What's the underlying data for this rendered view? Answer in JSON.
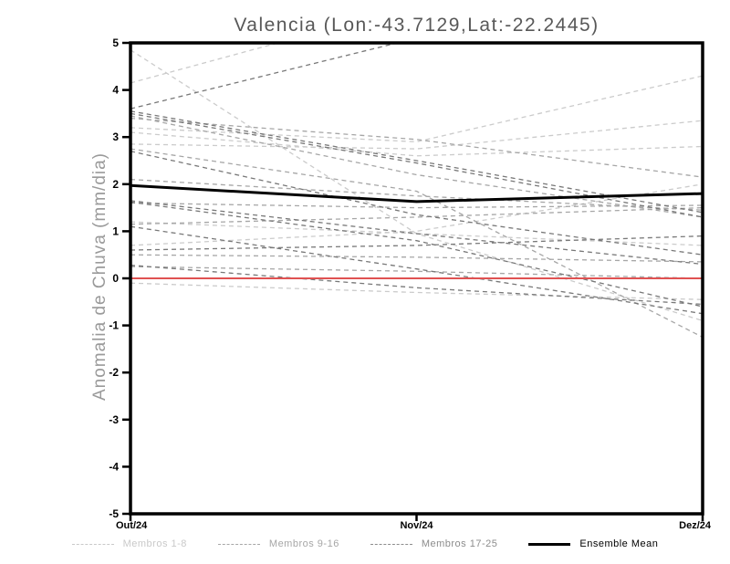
{
  "title": "Valencia (Lon:-43.7129,Lat:-22.2445)",
  "chart_data": {
    "type": "line",
    "title": "Valencia (Lon:-43.7129,Lat:-22.2445)",
    "xlabel": "",
    "ylabel": "Anomalia de Chuva (mm/dia)",
    "x_categories": [
      "Out/24",
      "Nov/24",
      "Dez/24"
    ],
    "yticks": [
      5,
      4,
      3,
      2,
      1,
      0,
      -1,
      -2,
      -3,
      -4,
      -5
    ],
    "ylim": [
      -5,
      5
    ],
    "grid": false,
    "legend_position": "bottom",
    "line_style_members": "dashed",
    "line_style_mean": "solid",
    "colors": {
      "members_1_8": "#cbcbcb",
      "members_9_16": "#a6a6a6",
      "members_17_25": "#787878",
      "ensemble_mean": "#000000",
      "zero_reference": "#e05252",
      "axis": "#000000",
      "title_text": "#585858",
      "y_axis_title_text": "#9a9a9a"
    },
    "series": [
      {
        "name": "Membro 1",
        "group": "1-8",
        "values": [
          4.85,
          0.95,
          -0.9
        ]
      },
      {
        "name": "Membro 2",
        "group": "1-8",
        "values": [
          3.2,
          2.9,
          4.3
        ]
      },
      {
        "name": "Membro 3",
        "group": "1-8",
        "values": [
          2.85,
          2.75,
          3.35
        ]
      },
      {
        "name": "Membro 4",
        "group": "1-8",
        "values": [
          3.1,
          2.6,
          2.8
        ]
      },
      {
        "name": "Membro 5",
        "group": "1-8",
        "values": [
          1.2,
          0.95,
          0.7
        ]
      },
      {
        "name": "Membro 6",
        "group": "1-8",
        "values": [
          0.7,
          1.0,
          2.0
        ]
      },
      {
        "name": "Membro 7",
        "group": "1-8",
        "values": [
          -0.1,
          -0.3,
          -0.45
        ]
      },
      {
        "name": "Membro 8",
        "group": "1-8",
        "values": [
          4.15,
          5.8,
          6.0
        ]
      },
      {
        "name": "Membro 9",
        "group": "9-16",
        "values": [
          3.45,
          2.2,
          1.3
        ]
      },
      {
        "name": "Membro 10",
        "group": "9-16",
        "values": [
          3.4,
          2.95,
          2.15
        ]
      },
      {
        "name": "Membro 11",
        "group": "9-16",
        "values": [
          2.75,
          1.85,
          -1.25
        ]
      },
      {
        "name": "Membro 12",
        "group": "9-16",
        "values": [
          2.1,
          1.75,
          1.45
        ]
      },
      {
        "name": "Membro 13",
        "group": "9-16",
        "values": [
          1.6,
          1.5,
          1.55
        ]
      },
      {
        "name": "Membro 14",
        "group": "9-16",
        "values": [
          0.5,
          0.45,
          0.35
        ]
      },
      {
        "name": "Membro 15",
        "group": "9-16",
        "values": [
          0.25,
          0.15,
          0.0
        ]
      },
      {
        "name": "Membro 16",
        "group": "9-16",
        "values": [
          1.15,
          1.3,
          1.5
        ]
      },
      {
        "name": "Membro 17",
        "group": "17-25",
        "values": [
          3.6,
          5.1,
          5.4
        ]
      },
      {
        "name": "Membro 18",
        "group": "17-25",
        "values": [
          3.55,
          2.5,
          1.4
        ]
      },
      {
        "name": "Membro 19",
        "group": "17-25",
        "values": [
          3.5,
          2.45,
          1.3
        ]
      },
      {
        "name": "Membro 20",
        "group": "17-25",
        "values": [
          2.7,
          1.35,
          0.5
        ]
      },
      {
        "name": "Membro 21",
        "group": "17-25",
        "values": [
          1.65,
          0.95,
          0.3
        ]
      },
      {
        "name": "Membro 22",
        "group": "17-25",
        "values": [
          1.62,
          0.8,
          -0.6
        ]
      },
      {
        "name": "Membro 23",
        "group": "17-25",
        "values": [
          1.1,
          0.2,
          -0.75
        ]
      },
      {
        "name": "Membro 24",
        "group": "17-25",
        "values": [
          0.6,
          0.7,
          0.9
        ]
      },
      {
        "name": "Membro 25",
        "group": "17-25",
        "values": [
          0.28,
          -0.2,
          -0.55
        ]
      },
      {
        "name": "Ensemble Mean",
        "group": "mean",
        "values": [
          1.97,
          1.63,
          1.8
        ]
      },
      {
        "name": "Zero reference",
        "group": "reference",
        "values": [
          0.0,
          0.0,
          0.0
        ]
      }
    ],
    "legend": [
      {
        "label": "Membros 1-8",
        "style": "dashed",
        "color": "#c9c9c9"
      },
      {
        "label": "Membros 9-16",
        "style": "dashed",
        "color": "#a6a6a6"
      },
      {
        "label": "Membros 17-25",
        "style": "dashed",
        "color": "#8c8c8c"
      },
      {
        "label": "Ensemble Mean",
        "style": "solid",
        "color": "#000000"
      }
    ]
  }
}
